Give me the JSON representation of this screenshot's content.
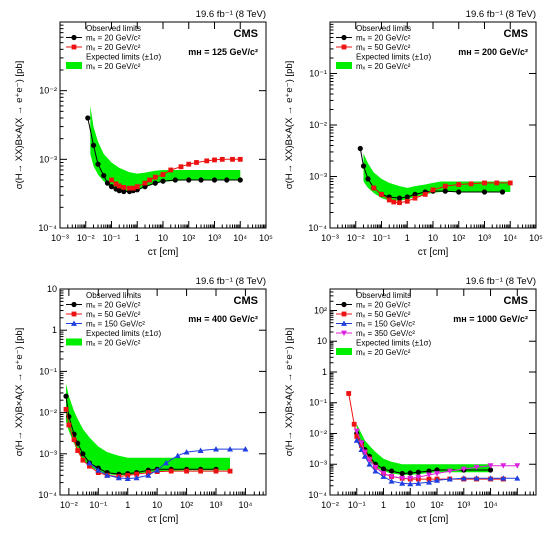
{
  "figure": {
    "lumi_label": "19.6 fb⁻¹ (8 TeV)",
    "experiment": "CMS",
    "xlabel": "cτ [cm]",
    "ylabel": "σ(H→ XX)B×A(X → e⁺e⁻) [pb]",
    "observed_header": "Observed limits",
    "expected_header": "Expected limits (±1σ)"
  },
  "colors": {
    "black": "#000000",
    "red": "#ee1111",
    "blue": "#1f3fe0",
    "magenta": "#dd22dd",
    "band": "#00ee00"
  },
  "chart_data": [
    {
      "type": "line",
      "panel": "top-left",
      "mass_label": "mʜ = 125 GeV/c²",
      "xscale": "log",
      "yscale": "log",
      "xlim": [
        0.001,
        100000
      ],
      "ylim": [
        0.0001,
        0.1
      ],
      "xticks": [
        "10⁻³",
        "10⁻²",
        "10⁻¹",
        "1",
        "10",
        "10²",
        "10³",
        "10⁴",
        "10⁵"
      ],
      "yticks": [
        "10⁻⁴",
        "10⁻³",
        "10⁻²"
      ],
      "series": [
        {
          "name": "mₓ = 20 GeV/c²",
          "kind": "observed",
          "color": "black",
          "marker": "circle",
          "x": [
            0.012,
            0.02,
            0.03,
            0.05,
            0.07,
            0.1,
            0.15,
            0.2,
            0.3,
            0.5,
            0.7,
            1,
            2,
            5,
            10,
            30,
            100,
            300,
            1000,
            3000,
            10000
          ],
          "y": [
            0.004,
            0.0016,
            0.00085,
            0.00058,
            0.00045,
            0.0004,
            0.00037,
            0.00035,
            0.00034,
            0.00034,
            0.00035,
            0.00036,
            0.0004,
            0.00045,
            0.00048,
            0.0005,
            0.0005,
            0.0005,
            0.0005,
            0.0005,
            0.0005
          ]
        },
        {
          "name": "mₓ = 20 GeV/c²",
          "kind": "observed",
          "color": "red",
          "marker": "square",
          "x": [
            0.1,
            0.15,
            0.2,
            0.3,
            0.5,
            0.7,
            1,
            2,
            3,
            5,
            10,
            20,
            50,
            100,
            200,
            500,
            1000,
            2000,
            5000,
            10000
          ],
          "y": [
            0.0005,
            0.00044,
            0.00041,
            0.00039,
            0.00038,
            0.00038,
            0.0004,
            0.00045,
            0.0005,
            0.00055,
            0.0006,
            0.0007,
            0.00078,
            0.00085,
            0.0009,
            0.00095,
            0.00098,
            0.001,
            0.001,
            0.001
          ]
        }
      ],
      "band": {
        "name": "mₓ = 20 GeV/c²",
        "x": [
          0.015,
          0.02,
          0.03,
          0.05,
          0.1,
          0.2,
          0.5,
          1,
          2,
          5,
          10,
          50,
          100,
          1000,
          10000
        ],
        "low": [
          0.0012,
          0.0008,
          0.0006,
          0.00048,
          0.00039,
          0.00035,
          0.00034,
          0.00035,
          0.00039,
          0.00044,
          0.00047,
          0.00049,
          0.0005,
          0.0005,
          0.0005
        ],
        "high": [
          0.006,
          0.003,
          0.0018,
          0.0012,
          0.0009,
          0.00075,
          0.00065,
          0.00062,
          0.00064,
          0.00068,
          0.0007,
          0.0007,
          0.0007,
          0.0007,
          0.0007
        ]
      }
    },
    {
      "type": "line",
      "panel": "top-right",
      "mass_label": "mʜ = 200 GeV/c²",
      "xscale": "log",
      "yscale": "log",
      "xlim": [
        0.001,
        100000
      ],
      "ylim": [
        0.0001,
        1
      ],
      "xticks": [
        "10⁻³",
        "10⁻²",
        "10⁻¹",
        "1",
        "10",
        "10²",
        "10³",
        "10⁴",
        "10⁵"
      ],
      "yticks": [
        "10⁻⁴",
        "10⁻³",
        "10⁻²",
        "10⁻¹"
      ],
      "series": [
        {
          "name": "mₓ = 20 GeV/c²",
          "kind": "observed",
          "color": "black",
          "marker": "circle",
          "x": [
            0.015,
            0.02,
            0.03,
            0.05,
            0.1,
            0.2,
            0.5,
            1,
            2,
            5,
            10,
            30,
            100,
            1000,
            5000
          ],
          "y": [
            0.0035,
            0.0016,
            0.0009,
            0.0006,
            0.00045,
            0.0004,
            0.00038,
            0.0004,
            0.00045,
            0.0005,
            0.00052,
            0.00052,
            0.0005,
            0.0005,
            0.0005
          ]
        },
        {
          "name": "mₓ = 50 GeV/c²",
          "kind": "observed",
          "color": "red",
          "marker": "square",
          "x": [
            0.05,
            0.1,
            0.2,
            0.3,
            0.5,
            1,
            2,
            5,
            10,
            30,
            100,
            300,
            1000,
            3000,
            10000
          ],
          "y": [
            0.0006,
            0.00045,
            0.00035,
            0.00032,
            0.00031,
            0.00033,
            0.00038,
            0.00045,
            0.00055,
            0.00065,
            0.0007,
            0.00072,
            0.00075,
            0.00075,
            0.00075
          ]
        }
      ],
      "band": {
        "name": "mₓ = 20 GeV/c²",
        "x": [
          0.02,
          0.03,
          0.05,
          0.1,
          0.2,
          0.5,
          1,
          2,
          5,
          10,
          20,
          50,
          100,
          1000,
          10000
        ],
        "low": [
          0.0008,
          0.0006,
          0.00048,
          0.00038,
          0.00034,
          0.00034,
          0.00036,
          0.0004,
          0.00045,
          0.00048,
          0.0005,
          0.0005,
          0.0005,
          0.0005,
          0.0005
        ],
        "high": [
          0.0028,
          0.0018,
          0.0012,
          0.0009,
          0.00075,
          0.00065,
          0.0006,
          0.00065,
          0.0007,
          0.00075,
          0.0008,
          0.0008,
          0.0008,
          0.0008,
          0.0008
        ]
      }
    },
    {
      "type": "line",
      "panel": "bottom-left",
      "mass_label": "mʜ = 400 GeV/c²",
      "xscale": "log",
      "yscale": "log",
      "xlim": [
        0.005,
        50000
      ],
      "ylim": [
        0.0001,
        10
      ],
      "xticks": [
        "10⁻²",
        "10⁻¹",
        "1",
        "10",
        "10²",
        "10³",
        "10⁴"
      ],
      "yticks": [
        "10⁻⁴",
        "10⁻³",
        "10⁻²",
        "10⁻¹",
        "1",
        "10"
      ],
      "series": [
        {
          "name": "mₓ = 20 GeV/c²",
          "kind": "observed",
          "color": "black",
          "marker": "circle",
          "x": [
            0.008,
            0.01,
            0.015,
            0.02,
            0.03,
            0.05,
            0.1,
            0.2,
            0.5,
            1,
            2,
            5,
            10,
            30,
            100,
            300,
            1000
          ],
          "y": [
            0.025,
            0.008,
            0.003,
            0.0018,
            0.001,
            0.0006,
            0.00045,
            0.00035,
            0.00032,
            0.00033,
            0.00035,
            0.0004,
            0.00042,
            0.00042,
            0.00042,
            0.00042,
            0.00042
          ]
        },
        {
          "name": "mₓ = 50 GeV/c²",
          "kind": "observed",
          "color": "red",
          "marker": "square",
          "x": [
            0.008,
            0.01,
            0.015,
            0.02,
            0.03,
            0.05,
            0.1,
            0.2,
            0.5,
            1,
            2,
            5,
            10,
            30,
            100,
            300,
            1000,
            3000
          ],
          "y": [
            0.012,
            0.005,
            0.0022,
            0.0012,
            0.0007,
            0.0005,
            0.00035,
            0.0003,
            0.00028,
            0.0003,
            0.00032,
            0.00035,
            0.00037,
            0.00038,
            0.00038,
            0.00038,
            0.00038,
            0.00038
          ]
        },
        {
          "name": "mₓ = 150 GeV/c²",
          "kind": "observed",
          "color": "blue",
          "marker": "triangle",
          "x": [
            0.05,
            0.1,
            0.2,
            0.5,
            1,
            2,
            5,
            10,
            20,
            50,
            100,
            300,
            1000,
            3000,
            10000
          ],
          "y": [
            0.0006,
            0.0004,
            0.0003,
            0.00026,
            0.00025,
            0.00026,
            0.0003,
            0.0004,
            0.0006,
            0.0009,
            0.0011,
            0.0012,
            0.0013,
            0.0013,
            0.0013
          ]
        }
      ],
      "band": {
        "name": "mₓ = 20 GeV/c²",
        "x": [
          0.008,
          0.01,
          0.015,
          0.02,
          0.03,
          0.05,
          0.1,
          0.2,
          0.5,
          1,
          2,
          5,
          10,
          100,
          3000
        ],
        "low": [
          0.006,
          0.0035,
          0.0018,
          0.0011,
          0.0007,
          0.0005,
          0.00038,
          0.00032,
          0.0003,
          0.00031,
          0.00033,
          0.00036,
          0.00038,
          0.0004,
          0.0004
        ],
        "high": [
          0.05,
          0.025,
          0.011,
          0.007,
          0.004,
          0.0025,
          0.0015,
          0.0011,
          0.0009,
          0.0008,
          0.0008,
          0.0008,
          0.0008,
          0.0008,
          0.0008
        ]
      }
    },
    {
      "type": "line",
      "panel": "bottom-right",
      "mass_label": "mʜ = 1000 GeV/c²",
      "xscale": "log",
      "yscale": "log",
      "xlim": [
        0.001,
        50000
      ],
      "ylim": [
        0.0001,
        500
      ],
      "xticks": [
        "10⁻²",
        "10⁻¹",
        "1",
        "10",
        "10²",
        "10³",
        "10⁴"
      ],
      "yticks": [
        "10⁻⁴",
        "10⁻³",
        "10⁻²",
        "10⁻¹",
        "1",
        "10",
        "10²"
      ],
      "series": [
        {
          "name": "mₓ = 20 GeV/c²",
          "kind": "observed",
          "color": "black",
          "marker": "circle",
          "x": [
            0.01,
            0.015,
            0.02,
            0.03,
            0.05,
            0.1,
            0.2,
            0.5,
            1,
            2,
            5,
            10,
            100,
            1000
          ],
          "y": [
            0.01,
            0.005,
            0.003,
            0.0018,
            0.001,
            0.0007,
            0.0006,
            0.0005,
            0.00052,
            0.00055,
            0.0006,
            0.00065,
            0.00065,
            0.00065
          ]
        },
        {
          "name": "mₓ = 50 GeV/c²",
          "kind": "observed",
          "color": "red",
          "marker": "square",
          "x": [
            0.005,
            0.008,
            0.01,
            0.015,
            0.02,
            0.03,
            0.05,
            0.1,
            0.2,
            0.5,
            1,
            2,
            5,
            10,
            30,
            100,
            300,
            1000,
            3000
          ],
          "y": [
            0.2,
            0.02,
            0.008,
            0.004,
            0.0025,
            0.0015,
            0.0008,
            0.0005,
            0.0004,
            0.00035,
            0.00033,
            0.00033,
            0.00033,
            0.00033,
            0.00033,
            0.00033,
            0.00033,
            0.00033,
            0.00033
          ]
        },
        {
          "name": "mₓ = 150 GeV/c²",
          "kind": "observed",
          "color": "blue",
          "marker": "triangle",
          "x": [
            0.01,
            0.015,
            0.02,
            0.03,
            0.05,
            0.1,
            0.2,
            0.5,
            1,
            2,
            5,
            10,
            30,
            100,
            300,
            1000,
            3000,
            10000
          ],
          "y": [
            0.006,
            0.003,
            0.0018,
            0.001,
            0.0006,
            0.0004,
            0.00028,
            0.00024,
            0.00023,
            0.00024,
            0.00026,
            0.0003,
            0.00033,
            0.00035,
            0.00035,
            0.00035,
            0.00035,
            0.00035
          ]
        },
        {
          "name": "mₓ = 350 GeV/c²",
          "kind": "observed",
          "color": "magenta",
          "marker": "triangle-down",
          "x": [
            0.01,
            0.015,
            0.02,
            0.03,
            0.05,
            0.1,
            0.2,
            0.5,
            1,
            2,
            5,
            10,
            30,
            100,
            300,
            1000,
            3000,
            10000
          ],
          "y": [
            0.012,
            0.005,
            0.0025,
            0.0014,
            0.0008,
            0.0005,
            0.0004,
            0.00035,
            0.00035,
            0.00038,
            0.00045,
            0.0005,
            0.0006,
            0.0007,
            0.0008,
            0.0009,
            0.0009,
            0.0009
          ]
        }
      ],
      "band": {
        "name": "mₓ = 20 GeV/c²",
        "x": [
          0.01,
          0.015,
          0.02,
          0.03,
          0.05,
          0.1,
          0.2,
          0.5,
          1,
          2,
          5,
          10,
          100,
          1000
        ],
        "low": [
          0.006,
          0.003,
          0.002,
          0.0012,
          0.0008,
          0.0006,
          0.0005,
          0.00045,
          0.00045,
          0.00048,
          0.00052,
          0.00055,
          0.00055,
          0.00055
        ],
        "high": [
          0.02,
          0.01,
          0.006,
          0.004,
          0.0025,
          0.0015,
          0.0012,
          0.001,
          0.001,
          0.001,
          0.001,
          0.001,
          0.001,
          0.001
        ]
      }
    }
  ]
}
